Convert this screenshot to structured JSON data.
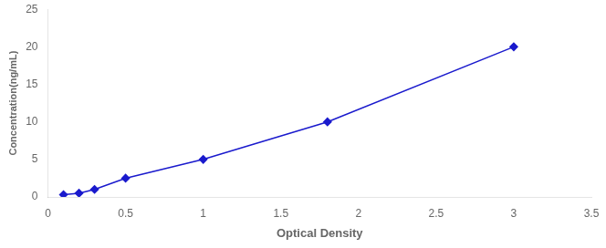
{
  "chart_data": {
    "type": "line",
    "x": [
      0.1,
      0.2,
      0.3,
      0.5,
      1.0,
      1.8,
      3.0
    ],
    "values": [
      0.3,
      0.5,
      1.0,
      2.5,
      5.0,
      10.0,
      20.0
    ],
    "color": "#1a1acd",
    "marker": "diamond",
    "line_style": "solid",
    "xlabel": "Optical Density",
    "ylabel": "Concentration(ng/mL)",
    "xlim": [
      0,
      3.5
    ],
    "xticks": [
      0,
      0.5,
      1,
      1.5,
      2,
      2.5,
      3,
      3.5
    ],
    "ylim": [
      0,
      25
    ],
    "yticks": [
      0,
      5,
      10,
      15,
      20,
      25
    ],
    "grid": false
  }
}
